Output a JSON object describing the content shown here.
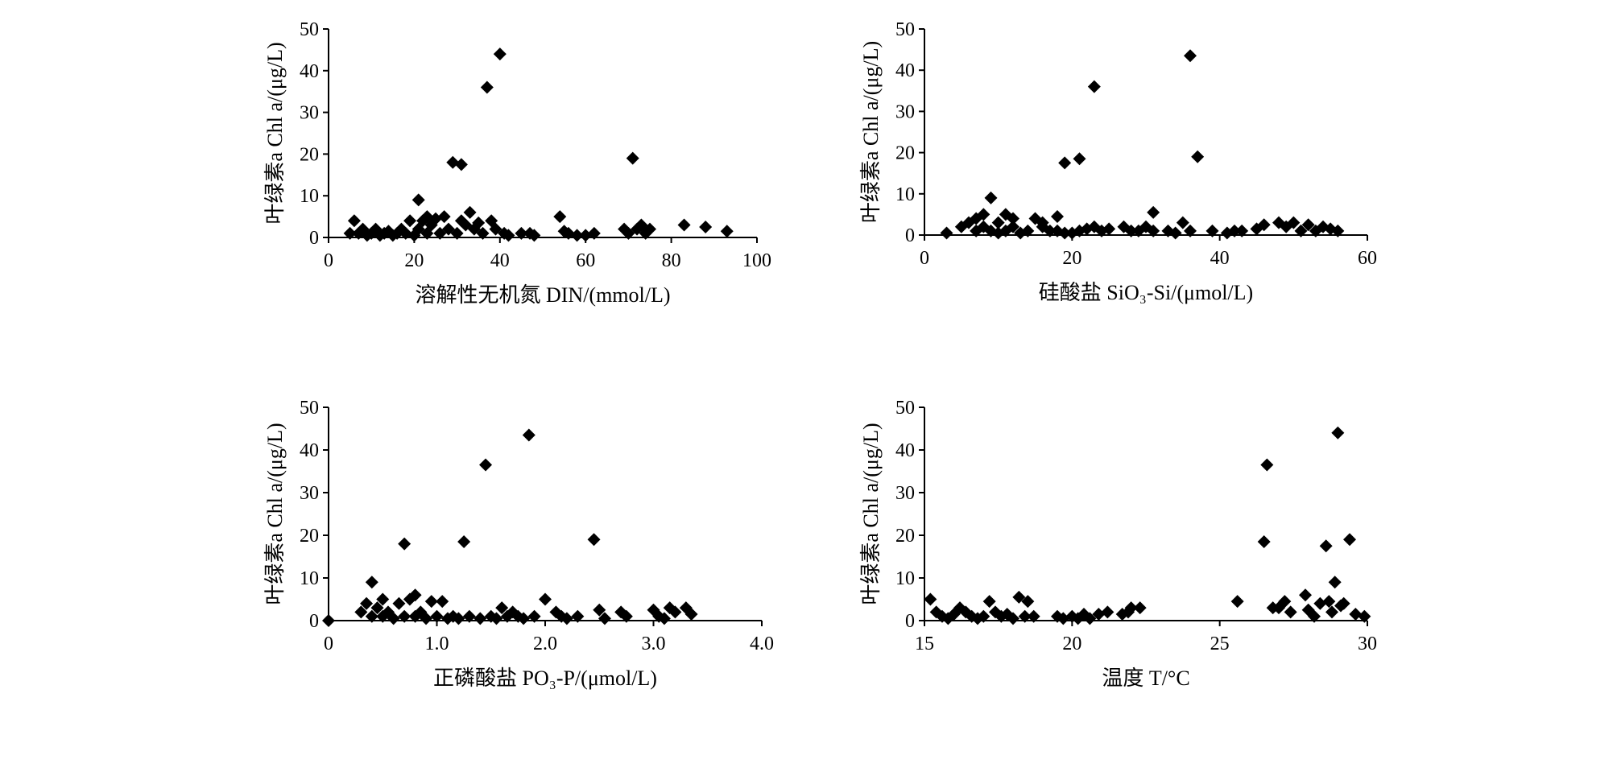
{
  "chart_data": [
    {
      "type": "scatter",
      "ylabel": "叶绿素a Chl a/(μg/L)",
      "xlabel": "溶解性无机氮 DIN/(mmol/L)",
      "xlim": [
        0,
        100
      ],
      "ylim": [
        0,
        50
      ],
      "xticks": [
        "0",
        "20",
        "40",
        "60",
        "80",
        "100"
      ],
      "yticks": [
        "0",
        "10",
        "20",
        "30",
        "40",
        "50"
      ],
      "grid": false,
      "points": [
        [
          5,
          1
        ],
        [
          6,
          4
        ],
        [
          7,
          1
        ],
        [
          8,
          2
        ],
        [
          9,
          0.5
        ],
        [
          10,
          1
        ],
        [
          11,
          2
        ],
        [
          12,
          0.5
        ],
        [
          13,
          1
        ],
        [
          14,
          1.5
        ],
        [
          15,
          0.5
        ],
        [
          16,
          1
        ],
        [
          17,
          2
        ],
        [
          18,
          1
        ],
        [
          19,
          4
        ],
        [
          20,
          0.5
        ],
        [
          21,
          9
        ],
        [
          21,
          2
        ],
        [
          22,
          4
        ],
        [
          23,
          5
        ],
        [
          23,
          1
        ],
        [
          24,
          3
        ],
        [
          25,
          4.5
        ],
        [
          26,
          1
        ],
        [
          27,
          5
        ],
        [
          28,
          2
        ],
        [
          29,
          18
        ],
        [
          30,
          1
        ],
        [
          31,
          17.5
        ],
        [
          31,
          4
        ],
        [
          32,
          3
        ],
        [
          33,
          6
        ],
        [
          34,
          2
        ],
        [
          35,
          3.5
        ],
        [
          36,
          1
        ],
        [
          37,
          36
        ],
        [
          38,
          4
        ],
        [
          39,
          2
        ],
        [
          40,
          44
        ],
        [
          41,
          1
        ],
        [
          42,
          0.5
        ],
        [
          45,
          1
        ],
        [
          47,
          1
        ],
        [
          48,
          0.5
        ],
        [
          54,
          5
        ],
        [
          55,
          1.5
        ],
        [
          56,
          1
        ],
        [
          58,
          0.5
        ],
        [
          60,
          0.5
        ],
        [
          62,
          1
        ],
        [
          69,
          2
        ],
        [
          70,
          1
        ],
        [
          71,
          19
        ],
        [
          72,
          2
        ],
        [
          73,
          3
        ],
        [
          74,
          1
        ],
        [
          75,
          2
        ],
        [
          83,
          3
        ],
        [
          88,
          2.5
        ],
        [
          93,
          1.5
        ]
      ]
    },
    {
      "type": "scatter",
      "ylabel": "叶绿素a Chl a/(μg/L)",
      "xlabel": "硅酸盐 SiO₃-Si/(μmol/L)",
      "xlim": [
        0,
        60
      ],
      "ylim": [
        0,
        50
      ],
      "xticks": [
        "0",
        "20",
        "40",
        "60"
      ],
      "yticks": [
        "0",
        "10",
        "20",
        "30",
        "40",
        "50"
      ],
      "grid": false,
      "points": [
        [
          3,
          0.5
        ],
        [
          5,
          2
        ],
        [
          6,
          3
        ],
        [
          7,
          1
        ],
        [
          7,
          4
        ],
        [
          8,
          2
        ],
        [
          8,
          5
        ],
        [
          9,
          9
        ],
        [
          9,
          1
        ],
        [
          10,
          3
        ],
        [
          10,
          0.5
        ],
        [
          11,
          5
        ],
        [
          11,
          1
        ],
        [
          12,
          4
        ],
        [
          12,
          2
        ],
        [
          13,
          0.5
        ],
        [
          14,
          1
        ],
        [
          15,
          4
        ],
        [
          16,
          2
        ],
        [
          16,
          3
        ],
        [
          17,
          1
        ],
        [
          18,
          4.5
        ],
        [
          18,
          1
        ],
        [
          19,
          17.5
        ],
        [
          19,
          0.5
        ],
        [
          20,
          0.5
        ],
        [
          21,
          18.5
        ],
        [
          21,
          1
        ],
        [
          22,
          1.5
        ],
        [
          23,
          36
        ],
        [
          23,
          2
        ],
        [
          24,
          1
        ],
        [
          25,
          1.5
        ],
        [
          27,
          2
        ],
        [
          28,
          1
        ],
        [
          29,
          1
        ],
        [
          30,
          2
        ],
        [
          31,
          5.5
        ],
        [
          31,
          1
        ],
        [
          33,
          1
        ],
        [
          34,
          0.5
        ],
        [
          35,
          3
        ],
        [
          36,
          43.5
        ],
        [
          36,
          1
        ],
        [
          37,
          19
        ],
        [
          39,
          1
        ],
        [
          41,
          0.5
        ],
        [
          42,
          1
        ],
        [
          43,
          1
        ],
        [
          45,
          1.5
        ],
        [
          46,
          2.5
        ],
        [
          48,
          3
        ],
        [
          49,
          2
        ],
        [
          50,
          3
        ],
        [
          51,
          1
        ],
        [
          52,
          2.5
        ],
        [
          53,
          1
        ],
        [
          54,
          2
        ],
        [
          55,
          1.5
        ],
        [
          56,
          1
        ]
      ]
    },
    {
      "type": "scatter",
      "ylabel": "叶绿素a Chl a/(μg/L)",
      "xlabel": "正磷酸盐 PO₃-P/(μmol/L)",
      "xlim": [
        0,
        4.0
      ],
      "ylim": [
        0,
        50
      ],
      "xticks": [
        "0",
        "1.0",
        "2.0",
        "3.0",
        "4.0"
      ],
      "yticks": [
        "0",
        "10",
        "20",
        "30",
        "40",
        "50"
      ],
      "grid": false,
      "points": [
        [
          0,
          0
        ],
        [
          0.3,
          2
        ],
        [
          0.35,
          4
        ],
        [
          0.4,
          9
        ],
        [
          0.4,
          1
        ],
        [
          0.45,
          3
        ],
        [
          0.5,
          5
        ],
        [
          0.5,
          1
        ],
        [
          0.55,
          2
        ],
        [
          0.6,
          0.5
        ],
        [
          0.65,
          4
        ],
        [
          0.7,
          18
        ],
        [
          0.7,
          1
        ],
        [
          0.75,
          5
        ],
        [
          0.8,
          6
        ],
        [
          0.8,
          1
        ],
        [
          0.85,
          2
        ],
        [
          0.9,
          0.5
        ],
        [
          0.95,
          4.5
        ],
        [
          1.0,
          1
        ],
        [
          1.05,
          4.5
        ],
        [
          1.1,
          0.5
        ],
        [
          1.15,
          1
        ],
        [
          1.2,
          0.5
        ],
        [
          1.25,
          18.5
        ],
        [
          1.3,
          1
        ],
        [
          1.4,
          0.5
        ],
        [
          1.45,
          36.5
        ],
        [
          1.5,
          1
        ],
        [
          1.55,
          0.5
        ],
        [
          1.6,
          3
        ],
        [
          1.65,
          1
        ],
        [
          1.7,
          2
        ],
        [
          1.75,
          1
        ],
        [
          1.8,
          0.5
        ],
        [
          1.85,
          43.5
        ],
        [
          1.9,
          1
        ],
        [
          2.0,
          5
        ],
        [
          2.1,
          2
        ],
        [
          2.15,
          1
        ],
        [
          2.2,
          0.5
        ],
        [
          2.3,
          1
        ],
        [
          2.45,
          19
        ],
        [
          2.5,
          2.5
        ],
        [
          2.55,
          0.5
        ],
        [
          2.7,
          2
        ],
        [
          2.75,
          1
        ],
        [
          3.0,
          2.5
        ],
        [
          3.05,
          1
        ],
        [
          3.1,
          0.5
        ],
        [
          3.15,
          3
        ],
        [
          3.2,
          2
        ],
        [
          3.3,
          3
        ],
        [
          3.35,
          1.5
        ]
      ]
    },
    {
      "type": "scatter",
      "ylabel": "叶绿素a Chl a/(μg/L)",
      "xlabel": "温度 T/°C",
      "xlim": [
        15,
        30
      ],
      "ylim": [
        0,
        50
      ],
      "xticks": [
        "15",
        "20",
        "25",
        "30"
      ],
      "yticks": [
        "0",
        "10",
        "20",
        "30",
        "40",
        "50"
      ],
      "grid": false,
      "points": [
        [
          15.2,
          5
        ],
        [
          15.4,
          2
        ],
        [
          15.6,
          1
        ],
        [
          15.8,
          0.5
        ],
        [
          16.0,
          1.5
        ],
        [
          16.2,
          3
        ],
        [
          16.4,
          2
        ],
        [
          16.6,
          1
        ],
        [
          16.8,
          0.5
        ],
        [
          17.0,
          1
        ],
        [
          17.2,
          4.5
        ],
        [
          17.4,
          2
        ],
        [
          17.6,
          1
        ],
        [
          17.8,
          1.5
        ],
        [
          18.0,
          0.5
        ],
        [
          18.2,
          5.5
        ],
        [
          18.4,
          1
        ],
        [
          18.5,
          4.5
        ],
        [
          18.7,
          1
        ],
        [
          19.5,
          1
        ],
        [
          19.7,
          0.5
        ],
        [
          20.0,
          1
        ],
        [
          20.2,
          0.5
        ],
        [
          20.4,
          1.5
        ],
        [
          20.6,
          0.5
        ],
        [
          20.9,
          1.5
        ],
        [
          21.2,
          2
        ],
        [
          21.7,
          1.5
        ],
        [
          21.9,
          2
        ],
        [
          22.0,
          3
        ],
        [
          22.3,
          3
        ],
        [
          25.6,
          4.5
        ],
        [
          26.5,
          18.5
        ],
        [
          26.6,
          36.5
        ],
        [
          26.8,
          3
        ],
        [
          27.0,
          3
        ],
        [
          27.2,
          4.5
        ],
        [
          27.4,
          2
        ],
        [
          27.9,
          6
        ],
        [
          28.0,
          2.5
        ],
        [
          28.2,
          1
        ],
        [
          28.4,
          4
        ],
        [
          28.6,
          17.5
        ],
        [
          28.7,
          4.5
        ],
        [
          28.8,
          2
        ],
        [
          28.9,
          9
        ],
        [
          29.0,
          44
        ],
        [
          29.1,
          3.5
        ],
        [
          29.2,
          4
        ],
        [
          29.4,
          19
        ],
        [
          29.6,
          1.5
        ],
        [
          29.9,
          1
        ]
      ]
    }
  ]
}
